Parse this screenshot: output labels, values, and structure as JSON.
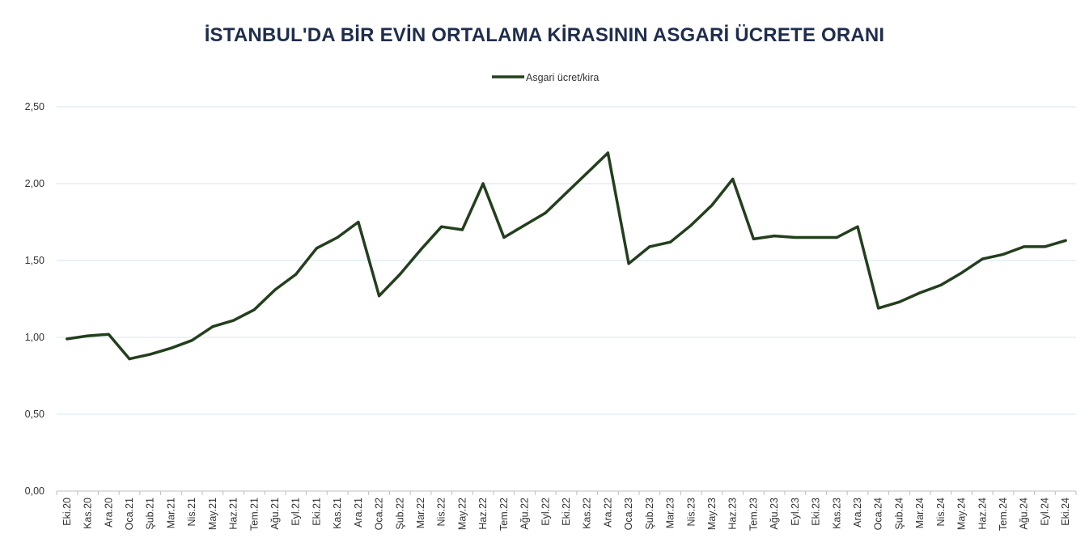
{
  "chart_data": {
    "type": "line",
    "title": "İSTANBUL'DA BİR EVİN ORTALAMA KİRASININ ASGARİ ÜCRETE ORANI",
    "xlabel": "",
    "ylabel": "",
    "ylim": [
      0,
      2.5
    ],
    "yticks": [
      "0,00",
      "0,50",
      "1,00",
      "1,50",
      "2,00",
      "2,50"
    ],
    "ytick_values": [
      0,
      0.5,
      1.0,
      1.5,
      2.0,
      2.5
    ],
    "grid": "horizontal",
    "legend_position": "top-center",
    "color": "#233f1d",
    "categories": [
      "Eki.20",
      "Kas.20",
      "Ara.20",
      "Oca.21",
      "Şub.21",
      "Mar.21",
      "Nis.21",
      "May.21",
      "Haz.21",
      "Tem.21",
      "Ağu.21",
      "Eyl.21",
      "Eki.21",
      "Kas.21",
      "Ara.21",
      "Oca.22",
      "Şub.22",
      "Mar.22",
      "Nis.22",
      "May.22",
      "Haz.22",
      "Tem.22",
      "Ağu.22",
      "Eyl.22",
      "Eki.22",
      "Kas.22",
      "Ara.22",
      "Oca.23",
      "Şub.23",
      "Mar.23",
      "Nis.23",
      "May.23",
      "Haz.23",
      "Tem.23",
      "Ağu.23",
      "Eyl.23",
      "Eki.23",
      "Kas.23",
      "Ara.23",
      "Oca.24",
      "Şub.24",
      "Mar.24",
      "Nis.24",
      "May.24",
      "Haz.24",
      "Tem.24",
      "Ağu.24",
      "Eyl.24",
      "Eki.24"
    ],
    "series": [
      {
        "name": "Asgari ücret/kira",
        "values": [
          0.99,
          1.01,
          1.02,
          0.86,
          0.89,
          0.93,
          0.98,
          1.07,
          1.11,
          1.18,
          1.31,
          1.41,
          1.58,
          1.65,
          1.75,
          1.27,
          1.41,
          1.57,
          1.72,
          1.7,
          2.0,
          1.65,
          1.73,
          1.81,
          1.94,
          2.07,
          2.2,
          1.48,
          1.59,
          1.62,
          1.73,
          1.86,
          2.03,
          1.64,
          1.66,
          1.65,
          1.65,
          1.65,
          1.72,
          1.19,
          1.23,
          1.29,
          1.34,
          1.42,
          1.51,
          1.54,
          1.59,
          1.59,
          1.63
        ]
      }
    ]
  }
}
